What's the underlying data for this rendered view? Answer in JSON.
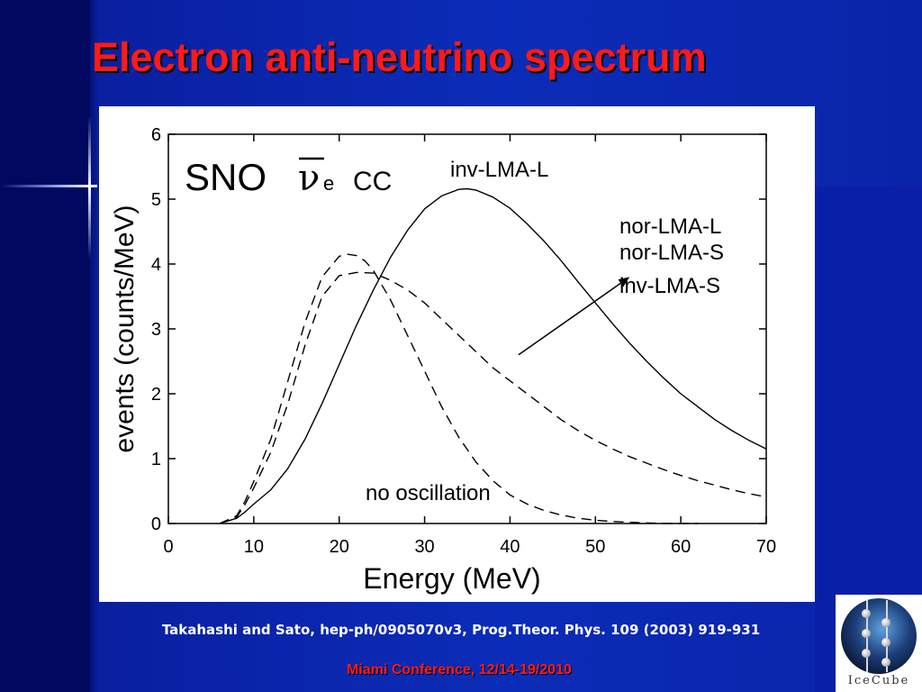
{
  "slide": {
    "title": "Electron anti-neutrino spectrum",
    "citation": "Takahashi and Sato, hep-ph/0905070v3, Prog.Theor. Phys. 109 (2003) 919-931",
    "footer": "Miami Conference, 12/14-19/2010",
    "logo_text": "IceCube",
    "colors": {
      "background": "#0b2cb8",
      "title": "#ff1a1a",
      "footer": "#ff1a1a",
      "citation": "#ffffff"
    }
  },
  "chart_data": {
    "type": "line",
    "title": "",
    "panel_label": {
      "prefix": "SNO",
      "symbol": "ν",
      "subscript": "e",
      "suffix": "CC"
    },
    "xlabel": "Energy (MeV)",
    "ylabel": "events (counts/MeV)",
    "xlim": [
      0,
      70
    ],
    "ylim": [
      0,
      6
    ],
    "x_ticks": [
      "0",
      "10",
      "20",
      "30",
      "40",
      "50",
      "60",
      "70"
    ],
    "y_ticks": [
      "0",
      "1",
      "2",
      "3",
      "4",
      "5",
      "6"
    ],
    "x_tick_values": [
      0,
      10,
      20,
      30,
      40,
      50,
      60,
      70
    ],
    "y_tick_values": [
      0,
      1,
      2,
      3,
      4,
      5,
      6
    ],
    "grid": false,
    "annotations": {
      "inv_lma_l": "inv-LMA-L",
      "group": [
        "nor-LMA-L",
        "nor-LMA-S",
        "inv-LMA-S"
      ],
      "no_osc": "no oscillation"
    },
    "arrow": {
      "from": [
        41,
        2.6
      ],
      "to": [
        54,
        3.8
      ]
    },
    "series": [
      {
        "style": "solid",
        "x": [
          6,
          8,
          9,
          10,
          12,
          14,
          16,
          18,
          20,
          22,
          24,
          26,
          28,
          30,
          32,
          34,
          35,
          36,
          38,
          40,
          42,
          44,
          46,
          48,
          50,
          52,
          54,
          56,
          58,
          60,
          62,
          64,
          66,
          68,
          70
        ],
        "y": [
          0,
          0.08,
          0.18,
          0.3,
          0.52,
          0.85,
          1.3,
          1.85,
          2.45,
          3.05,
          3.6,
          4.1,
          4.52,
          4.85,
          5.05,
          5.15,
          5.16,
          5.14,
          5.03,
          4.86,
          4.62,
          4.35,
          4.05,
          3.72,
          3.4,
          3.08,
          2.78,
          2.5,
          2.24,
          2.0,
          1.8,
          1.6,
          1.43,
          1.28,
          1.15
        ]
      },
      {
        "style": "dashed",
        "x": [
          6,
          8,
          9,
          10,
          12,
          14,
          16,
          18,
          20,
          22,
          24,
          26,
          28,
          30,
          32,
          34,
          36,
          38,
          40,
          42,
          44,
          46,
          48,
          50,
          52,
          54,
          56,
          58,
          60,
          62,
          64,
          66,
          68,
          70
        ],
        "y": [
          0,
          0.1,
          0.3,
          0.55,
          1.1,
          1.85,
          2.75,
          3.5,
          3.82,
          3.87,
          3.86,
          3.75,
          3.6,
          3.4,
          3.15,
          2.9,
          2.65,
          2.4,
          2.2,
          2.0,
          1.8,
          1.6,
          1.43,
          1.28,
          1.15,
          1.03,
          0.93,
          0.83,
          0.74,
          0.66,
          0.59,
          0.52,
          0.46,
          0.41
        ]
      },
      {
        "style": "dashed",
        "x": [
          6,
          8,
          9,
          10,
          12,
          14,
          16,
          18,
          20,
          21,
          22,
          23,
          24,
          26,
          28,
          30,
          32,
          34,
          36,
          38,
          40,
          42,
          44,
          46,
          48,
          50,
          52,
          54,
          56,
          58,
          60,
          62
        ],
        "y": [
          0,
          0.12,
          0.35,
          0.65,
          1.3,
          2.2,
          3.1,
          3.8,
          4.12,
          4.15,
          4.13,
          4.05,
          3.9,
          3.45,
          2.9,
          2.35,
          1.8,
          1.33,
          0.95,
          0.66,
          0.44,
          0.3,
          0.2,
          0.13,
          0.08,
          0.05,
          0.03,
          0.02,
          0.01,
          0.0,
          0.0,
          0.0
        ]
      }
    ]
  }
}
